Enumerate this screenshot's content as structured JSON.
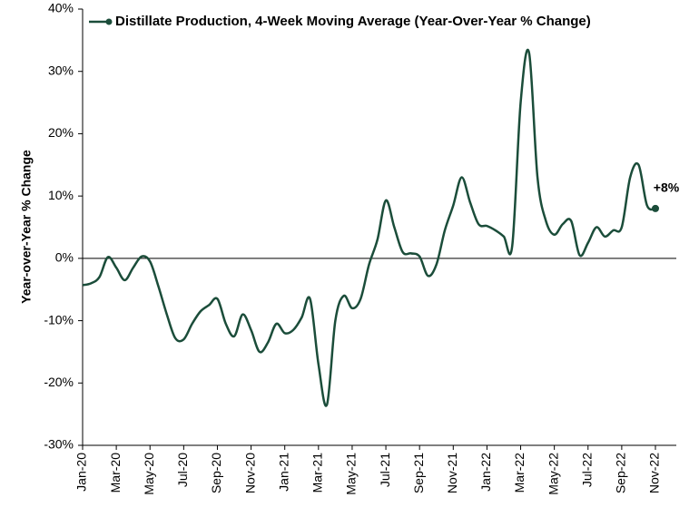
{
  "chart_data": {
    "type": "line",
    "ylabel": "Year-over-Year % Change",
    "annotation": "+8%",
    "categories": [
      "Jan-20",
      null,
      null,
      null,
      "Mar-20",
      null,
      null,
      null,
      "May-20",
      null,
      null,
      null,
      "Jul-20",
      null,
      null,
      null,
      "Sep-20",
      null,
      null,
      null,
      "Nov-20",
      null,
      null,
      null,
      "Jan-21",
      null,
      null,
      null,
      "Mar-21",
      null,
      null,
      null,
      "May-21",
      null,
      null,
      null,
      "Jul-21",
      null,
      null,
      null,
      "Sep-21",
      null,
      null,
      null,
      "Nov-21",
      null,
      null,
      null,
      "Jan-22",
      null,
      null,
      null,
      "Mar-22",
      null,
      null,
      null,
      "May-22",
      null,
      null,
      null,
      "Jul-22",
      null,
      null,
      null,
      "Sep-22",
      null,
      null,
      null,
      "Nov-22"
    ],
    "series": [
      {
        "name": "Distillate Production, 4-Week Moving Average (Year-Over-Year % Change)",
        "color": "#1b4d3a",
        "values": [
          -4.3,
          -4.0,
          -3.0,
          0.2,
          -1.5,
          -3.5,
          -1.5,
          0.3,
          -0.5,
          -4.5,
          -9.0,
          -12.8,
          -13.0,
          -10.5,
          -8.5,
          -7.5,
          -6.5,
          -10.5,
          -12.5,
          -9.0,
          -11.5,
          -15.0,
          -13.5,
          -10.5,
          -12.0,
          -11.5,
          -9.5,
          -6.5,
          -17.0,
          -23.5,
          -10.0,
          -6.0,
          -8.0,
          -6.5,
          -1.0,
          3.0,
          9.3,
          5.0,
          1.0,
          0.8,
          0.3,
          -2.8,
          -1.0,
          4.5,
          8.5,
          13.0,
          9.0,
          5.5,
          5.2,
          4.5,
          3.5,
          2.0,
          25.0,
          33.0,
          13.0,
          6.0,
          3.8,
          5.5,
          6.0,
          0.5,
          2.5,
          5.0,
          3.5,
          4.5,
          5.0,
          13.0,
          15.0,
          8.5,
          8.0
        ]
      }
    ],
    "ylim": [
      -30,
      40
    ],
    "yticks": [
      {
        "value": -30,
        "label": "-30%"
      },
      {
        "value": -20,
        "label": "-20%"
      },
      {
        "value": -10,
        "label": "-10%"
      },
      {
        "value": 0,
        "label": "0%"
      },
      {
        "value": 10,
        "label": "10%"
      },
      {
        "value": 20,
        "label": "20%"
      },
      {
        "value": 30,
        "label": "30%"
      },
      {
        "value": 40,
        "label": "40%"
      }
    ],
    "legend": "top-left"
  }
}
